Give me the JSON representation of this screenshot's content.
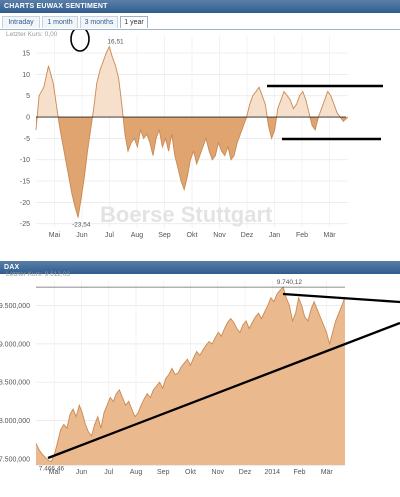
{
  "panel1": {
    "title": "CHARTS EUWAX SENTIMENT",
    "tabs": [
      {
        "label": "Intraday",
        "active": false
      },
      {
        "label": "1 month",
        "active": false
      },
      {
        "label": "3 months",
        "active": false
      },
      {
        "label": "1 year",
        "active": true
      }
    ],
    "last_price_label": "Letzter Kurs: 0,00"
  },
  "panel2": {
    "title": "DAX",
    "last_price_label": "Letzter Kurs: 9.612,03"
  },
  "watermark": "Boerse Stuttgart",
  "chart_data": [
    {
      "type": "area",
      "title": "",
      "x_tick_labels": [
        "Mai",
        "Jun",
        "Jul",
        "Aug",
        "Sep",
        "Okt",
        "Nov",
        "Dez",
        "Jan",
        "Feb",
        "Mär"
      ],
      "y_ticks": [
        15,
        10,
        5,
        0,
        -5,
        -10,
        -15,
        -20,
        -25
      ],
      "ylim": [
        -26,
        19
      ],
      "grid": true,
      "annotations": [
        {
          "text": "16,51",
          "x": 0.255,
          "y": 16.51
        },
        {
          "text": "-23,54",
          "x": 0.145,
          "y": -23.54
        }
      ],
      "series": [
        {
          "x": [
            0.0,
            0.01,
            0.025,
            0.04,
            0.055,
            0.065,
            0.075,
            0.085,
            0.095,
            0.105,
            0.115,
            0.125,
            0.135,
            0.145,
            0.155,
            0.165,
            0.175,
            0.185,
            0.195,
            0.205,
            0.215,
            0.225,
            0.235,
            0.245,
            0.255,
            0.265,
            0.275,
            0.285,
            0.295,
            0.305,
            0.315,
            0.325,
            0.335,
            0.345,
            0.355,
            0.365,
            0.375,
            0.385,
            0.395,
            0.405,
            0.415,
            0.425,
            0.435,
            0.445,
            0.455,
            0.465,
            0.475,
            0.485,
            0.495,
            0.505,
            0.515,
            0.525,
            0.535,
            0.545,
            0.555,
            0.565,
            0.575,
            0.585,
            0.595,
            0.605,
            0.615,
            0.625,
            0.635,
            0.645,
            0.655,
            0.665,
            0.675,
            0.685,
            0.695,
            0.705,
            0.715,
            0.725,
            0.735,
            0.745,
            0.755,
            0.765,
            0.775,
            0.785,
            0.795,
            0.805,
            0.815,
            0.825,
            0.835,
            0.845,
            0.855,
            0.865,
            0.875,
            0.885,
            0.895,
            0.905,
            0.915,
            0.925,
            0.935,
            0.945,
            0.955,
            0.965,
            0.975,
            0.985,
            1.0
          ],
          "y": [
            -3,
            5,
            7,
            12,
            8,
            3,
            -2,
            -6,
            -10,
            -14,
            -18,
            -21,
            -23.54,
            -19,
            -14,
            -8,
            -3,
            2,
            8,
            11,
            13,
            15,
            16.51,
            14,
            12,
            9,
            3,
            -4,
            -8,
            -6,
            -5,
            -7,
            -3,
            -5,
            -4,
            -6,
            -9,
            -5,
            -3,
            -7,
            -5,
            -8,
            -4,
            -9,
            -12,
            -15,
            -17,
            -14,
            -10,
            -8,
            -11,
            -9,
            -7,
            -5,
            -8,
            -10,
            -9,
            -6,
            -8,
            -9,
            -7,
            -10,
            -9,
            -6,
            -4,
            -2,
            0,
            3,
            5,
            6,
            7,
            5,
            3,
            -2,
            -5,
            -3,
            2,
            4,
            6,
            5,
            4,
            2,
            3,
            5,
            6,
            4,
            1,
            -2,
            -3,
            0,
            2,
            4,
            6,
            5,
            3,
            1,
            0,
            -1,
            0
          ]
        }
      ]
    },
    {
      "type": "area",
      "title": "",
      "x_tick_labels": [
        "Mai",
        "Jun",
        "Jul",
        "Aug",
        "Sep",
        "Okt",
        "Nov",
        "Dez",
        "2014",
        "Feb",
        "Mär"
      ],
      "y_ticks": [
        9500,
        9000,
        8500,
        8000,
        7500
      ],
      "ylim": [
        7420,
        9820
      ],
      "grid": true,
      "annotations": [
        {
          "text": "9.740,12",
          "x": 0.82,
          "y": 9740.12
        },
        {
          "text": "7.466,46",
          "x": 0.05,
          "y": 7466.46
        }
      ],
      "series": [
        {
          "x": [
            0.0,
            0.01,
            0.02,
            0.03,
            0.04,
            0.05,
            0.06,
            0.07,
            0.08,
            0.09,
            0.1,
            0.11,
            0.12,
            0.13,
            0.14,
            0.15,
            0.16,
            0.17,
            0.18,
            0.19,
            0.2,
            0.21,
            0.22,
            0.23,
            0.24,
            0.25,
            0.26,
            0.27,
            0.28,
            0.29,
            0.3,
            0.31,
            0.32,
            0.33,
            0.34,
            0.35,
            0.36,
            0.37,
            0.38,
            0.39,
            0.4,
            0.41,
            0.42,
            0.43,
            0.44,
            0.45,
            0.46,
            0.47,
            0.48,
            0.49,
            0.5,
            0.51,
            0.52,
            0.53,
            0.54,
            0.55,
            0.56,
            0.57,
            0.58,
            0.59,
            0.6,
            0.61,
            0.62,
            0.63,
            0.64,
            0.65,
            0.66,
            0.67,
            0.68,
            0.69,
            0.7,
            0.71,
            0.72,
            0.73,
            0.74,
            0.75,
            0.76,
            0.77,
            0.78,
            0.79,
            0.8,
            0.81,
            0.82,
            0.83,
            0.84,
            0.85,
            0.86,
            0.87,
            0.88,
            0.89,
            0.9,
            0.91,
            0.92,
            0.93,
            0.94,
            0.95,
            0.96,
            0.97,
            0.98,
            0.99,
            1.0
          ],
          "y": [
            7700,
            7620,
            7560,
            7520,
            7480,
            7466.46,
            7560,
            7720,
            7880,
            7950,
            7900,
            8080,
            8150,
            8050,
            8200,
            8100,
            7950,
            7850,
            7800,
            7950,
            8050,
            7900,
            8100,
            8200,
            8300,
            8250,
            8350,
            8400,
            8300,
            8200,
            8250,
            8150,
            8050,
            8100,
            8200,
            8280,
            8350,
            8300,
            8400,
            8450,
            8500,
            8420,
            8550,
            8600,
            8680,
            8600,
            8620,
            8700,
            8750,
            8800,
            8720,
            8820,
            8900,
            8850,
            8920,
            8980,
            9030,
            9000,
            9080,
            9150,
            9100,
            9200,
            9280,
            9330,
            9280,
            9200,
            9150,
            9250,
            9300,
            9200,
            9280,
            9350,
            9400,
            9330,
            9420,
            9500,
            9600,
            9550,
            9650,
            9700,
            9740.12,
            9600,
            9500,
            9300,
            9400,
            9600,
            9500,
            9350,
            9300,
            9450,
            9550,
            9450,
            9350,
            9250,
            9150,
            9000,
            9150,
            9300,
            9400,
            9500,
            9612.03
          ]
        }
      ]
    }
  ]
}
